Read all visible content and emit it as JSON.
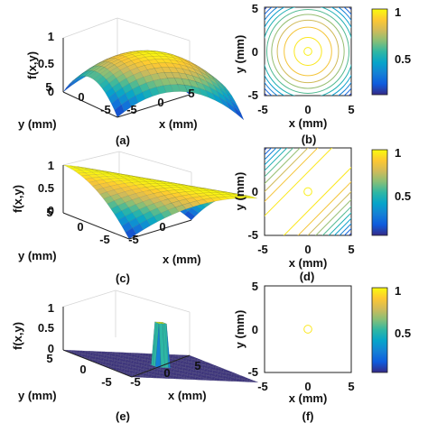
{
  "colorbar_ticks": [
    "1",
    "0.5"
  ],
  "colors": {
    "parula": [
      "#352a87",
      "#0f5cdd",
      "#1481d6",
      "#06a4ca",
      "#2eb7a4",
      "#87bf77",
      "#d1bb59",
      "#fec832",
      "#f9fb0e"
    ],
    "surface_edge": "#333333",
    "axis": "#222222",
    "grid": "#d6d6d6"
  },
  "chart_data": [
    {
      "panel": "(a)",
      "type": "surface",
      "zlabel": "f(x,y)",
      "xlabel": "x (mm)",
      "ylabel": "y (mm)",
      "x_ticks": [
        "5",
        "0",
        "-5"
      ],
      "y_ticks": [
        "5",
        "0",
        "-5"
      ],
      "z_ticks": [
        "1",
        "0.5",
        "0"
      ],
      "xlim": [
        -5,
        5
      ],
      "ylim": [
        -5,
        5
      ],
      "zlim": [
        0,
        1
      ],
      "function": "smooth cap peaking at 1 at the origin, falling to 0 at the corners"
    },
    {
      "panel": "(b)",
      "type": "contour",
      "xlabel": "x (mm)",
      "ylabel": "y (mm)",
      "x_ticks": [
        "-5",
        "0",
        "5"
      ],
      "y_ticks": [
        "5",
        "0",
        "-5"
      ],
      "xlim": [
        -5,
        5
      ],
      "ylim": [
        -5,
        5
      ],
      "colorbar_range": [
        0,
        1
      ],
      "shape": "concentric circles centred at (0, 0)",
      "levels": [
        0.95,
        0.85,
        0.75,
        0.65,
        0.55,
        0.45,
        0.35,
        0.25,
        0.15,
        0.05
      ]
    },
    {
      "panel": "(c)",
      "type": "surface",
      "zlabel": "f(x,y)",
      "xlabel": "x (mm)",
      "ylabel": "y (mm)",
      "x_ticks": [
        "0",
        "-5"
      ],
      "y_ticks": [
        "5",
        "0",
        "-5"
      ],
      "z_ticks": [
        "1",
        "0.5",
        "0"
      ],
      "xlim": [
        -5,
        5
      ],
      "ylim": [
        -5,
        5
      ],
      "zlim": [
        0,
        1
      ],
      "function": "ridge along the line y = x, maximum 1, falling to 0 at the off-diagonal corners"
    },
    {
      "panel": "(d)",
      "type": "contour",
      "xlabel": "x (mm)",
      "ylabel": "y (mm)",
      "x_ticks": [
        "-5",
        "0",
        "5"
      ],
      "y_ticks": [
        "0",
        "-5"
      ],
      "xlim": [
        -5,
        5
      ],
      "ylim": [
        -5,
        5
      ],
      "colorbar_range": [
        0,
        1
      ],
      "shape": "parallel diagonal lines (ridge along y = x)",
      "levels": [
        0.95,
        0.85,
        0.75,
        0.65,
        0.55,
        0.45,
        0.35,
        0.25,
        0.15,
        0.05
      ]
    },
    {
      "panel": "(e)",
      "type": "surface",
      "zlabel": "f(x,y)",
      "xlabel": "x (mm)",
      "ylabel": "y (mm)",
      "x_ticks": [
        "5",
        "0",
        "-5"
      ],
      "y_ticks": [
        "5",
        "0",
        "-5"
      ],
      "z_ticks": [
        "1",
        "0.5",
        "0"
      ],
      "xlim": [
        -5,
        5
      ],
      "ylim": [
        -5,
        5
      ],
      "zlim": [
        0,
        1
      ],
      "function": "narrow spike of height 1 at the origin, 0 elsewhere"
    },
    {
      "panel": "(f)",
      "type": "contour",
      "xlabel": "x (mm)",
      "ylabel": "y (mm)",
      "x_ticks": [
        "-5",
        "0",
        "5"
      ],
      "y_ticks": [
        "5",
        "0",
        "-5"
      ],
      "xlim": [
        -5,
        5
      ],
      "ylim": [
        -5,
        5
      ],
      "colorbar_range": [
        0,
        1
      ],
      "shape": "single small circle centred at (0, 0)",
      "levels": [
        0.95
      ]
    }
  ]
}
